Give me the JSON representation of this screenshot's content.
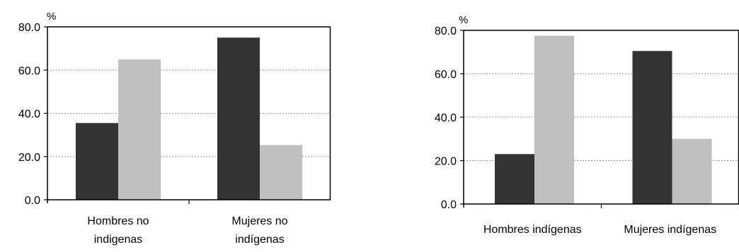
{
  "chart_data": [
    {
      "type": "bar",
      "categories": [
        "Hombres no indigenas",
        "Mujeres no indígenas"
      ],
      "series": [
        {
          "values": [
            35.5,
            75.0
          ],
          "color": "#333333"
        },
        {
          "values": [
            64.9,
            25.3
          ],
          "color": "#bfbfbf"
        }
      ],
      "unit": "%",
      "ylim": [
        0,
        80
      ],
      "yticks": [
        0,
        20,
        40,
        60,
        80
      ],
      "ytick_labels": [
        "0.0",
        "20.0",
        "40.0",
        "60.0",
        "80.0"
      ],
      "grid": true
    },
    {
      "type": "bar",
      "categories": [
        "Hombres indígenas",
        "Mujeres indígenas"
      ],
      "series": [
        {
          "values": [
            23.0,
            70.5
          ],
          "color": "#333333"
        },
        {
          "values": [
            77.5,
            30.0
          ],
          "color": "#bfbfbf"
        }
      ],
      "unit": "%",
      "ylim": [
        0,
        80
      ],
      "yticks": [
        0,
        20,
        40,
        60,
        80
      ],
      "ytick_labels": [
        "0.0",
        "20.0",
        "40.0",
        "60.0",
        "80.0"
      ],
      "grid": true
    }
  ]
}
